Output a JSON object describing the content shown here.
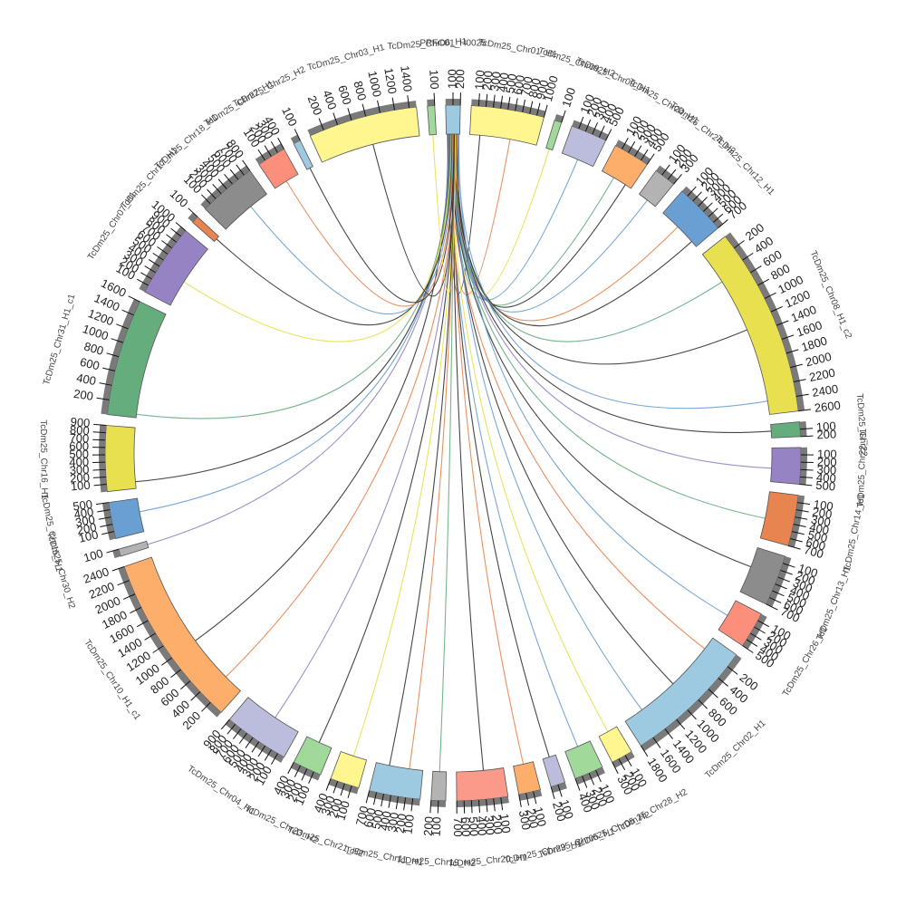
{
  "chart_data": {
    "type": "chord",
    "sectors": [
      {
        "name": "PRFC01_H0025",
        "length": 200,
        "color": "#9ecae1",
        "ticks": [
          100,
          200
        ]
      },
      {
        "name": "TcDm25_Chr01_H1",
        "length": 1000,
        "color": "#fff68f",
        "ticks": [
          100,
          200,
          300,
          400,
          500,
          600,
          700,
          800,
          900,
          1000
        ]
      },
      {
        "name": "TcDm25_Chr09_H2",
        "length": 100,
        "color": "#a1d99b",
        "ticks": [
          100
        ]
      },
      {
        "name": "TcDm25_Chr09_H1",
        "length": 500,
        "color": "#bcbddc",
        "ticks": [
          100,
          200,
          300,
          400,
          500
        ]
      },
      {
        "name": "TcDm25_Chr24_H1",
        "length": 500,
        "color": "#fdae6b",
        "ticks": [
          100,
          200,
          300,
          400,
          500
        ]
      },
      {
        "name": "TcDm25_Chr24_H2",
        "length": 300,
        "color": "#b3b3b3",
        "ticks": [
          100,
          200,
          300
        ]
      },
      {
        "name": "TcDm25_Chr12_H1",
        "length": 700,
        "color": "#6a9fd4",
        "ticks": [
          100,
          200,
          300,
          400,
          500,
          600,
          700
        ]
      },
      {
        "name": "TcDm25_Chr08_H1_c2",
        "length": 2600,
        "color": "#e8e04f",
        "ticks": [
          200,
          400,
          600,
          800,
          1000,
          1200,
          1400,
          1600,
          1800,
          2000,
          2200,
          2400,
          2600
        ]
      },
      {
        "name": "TcDm25_Chr22",
        "length": 200,
        "color": "#66ad7e",
        "ticks": [
          100,
          200
        ]
      },
      {
        "name": "TcDm25_Chr22_H1",
        "length": 500,
        "color": "#9683c4",
        "ticks": [
          100,
          200,
          300,
          400,
          500
        ]
      },
      {
        "name": "TcDm25_Chr14_H1",
        "length": 700,
        "color": "#e8844f",
        "ticks": [
          100,
          200,
          300,
          400,
          500,
          600,
          700
        ]
      },
      {
        "name": "TcDm25_Chr13_H1",
        "length": 700,
        "color": "#8c8c8c",
        "ticks": [
          100,
          200,
          300,
          400,
          500,
          600,
          700
        ]
      },
      {
        "name": "TcDm25_Chr26_H1",
        "length": 500,
        "color": "#fb8f7c",
        "ticks": [
          100,
          200,
          300,
          400,
          500
        ]
      },
      {
        "name": "TcDm25_Chr02_H1",
        "length": 1800,
        "color": "#9ecae1",
        "ticks": [
          200,
          400,
          600,
          800,
          1000,
          1200,
          1400,
          1600,
          1800
        ]
      },
      {
        "name": "TcDm25_Chr28_H2",
        "length": 300,
        "color": "#fff68f",
        "ticks": [
          100,
          200,
          300
        ]
      },
      {
        "name": "TcDm25_Chr05_H2",
        "length": 400,
        "color": "#a1d99b",
        "ticks": [
          100,
          200,
          300,
          400
        ]
      },
      {
        "name": "TcDm25_Chr05_H1",
        "length": 200,
        "color": "#bcbddc",
        "ticks": [
          100,
          200
        ]
      },
      {
        "name": "TcDm25_Chr29_H1",
        "length": 300,
        "color": "#fdae6b",
        "ticks": [
          100,
          200,
          300
        ]
      },
      {
        "name": "TcDm25_Chr20_H1",
        "length": 700,
        "color": "#fb9a8a",
        "ticks": [
          100,
          200,
          300,
          400,
          500,
          600,
          700
        ]
      },
      {
        "name": "TcDm25_Chr19_H2",
        "length": 200,
        "color": "#b3b3b3",
        "ticks": [
          100,
          200
        ]
      },
      {
        "name": "TcDm25_Chr11_H1",
        "length": 700,
        "color": "#9ecae1",
        "ticks": [
          100,
          200,
          300,
          400,
          500,
          600,
          700
        ]
      },
      {
        "name": "TcDm25_Chr21_H2",
        "length": 400,
        "color": "#fff68f",
        "ticks": [
          100,
          200,
          300,
          400
        ]
      },
      {
        "name": "TcDm25_Chr23_H2",
        "length": 400,
        "color": "#a1d99b",
        "ticks": [
          100,
          200,
          300,
          400
        ]
      },
      {
        "name": "TcDm25_Chr04_H1",
        "length": 900,
        "color": "#bcbddc",
        "ticks": [
          100,
          200,
          300,
          400,
          500,
          600,
          700,
          800,
          900
        ]
      },
      {
        "name": "TcDm25_Chr10_H1_c1",
        "length": 2400,
        "color": "#fdae6b",
        "ticks": [
          200,
          400,
          600,
          800,
          1000,
          1200,
          1400,
          1600,
          1800,
          2000,
          2200,
          2400
        ]
      },
      {
        "name": "TcDm25_Chr30_H2",
        "length": 100,
        "color": "#b3b3b3",
        "ticks": [
          100
        ]
      },
      {
        "name": "TcDm25_Chr15_H1",
        "length": 500,
        "color": "#6a9fd4",
        "ticks": [
          100,
          200,
          300,
          400,
          500
        ]
      },
      {
        "name": "TcDm25_Chr16_H1",
        "length": 900,
        "color": "#e8e04f",
        "ticks": [
          100,
          200,
          300,
          400,
          500,
          600,
          700,
          800,
          900
        ]
      },
      {
        "name": "TcDm25_Chr31_H1_c1",
        "length": 1600,
        "color": "#66ad7e",
        "ticks": [
          200,
          400,
          600,
          800,
          1000,
          1200,
          1400,
          1600
        ]
      },
      {
        "name": "TcDm25_Chr07_H1",
        "length": 1000,
        "color": "#9683c4",
        "ticks": [
          100,
          200,
          300,
          400,
          500,
          600,
          700,
          800,
          900,
          1000
        ]
      },
      {
        "name": "TcDm25_Chr17_H1",
        "length": 100,
        "color": "#e8844f",
        "ticks": [
          100
        ]
      },
      {
        "name": "TcDm25_Chr18_H1",
        "length": 800,
        "color": "#8c8c8c",
        "ticks": [
          100,
          200,
          300,
          400,
          500,
          600,
          700,
          800
        ]
      },
      {
        "name": "TcDm25_Chr27_H1",
        "length": 400,
        "color": "#fb8f7c",
        "ticks": [
          100,
          200,
          300,
          400
        ]
      },
      {
        "name": "TcDm25_Chr25_H2",
        "length": 100,
        "color": "#9ecae1",
        "ticks": [
          100
        ]
      },
      {
        "name": "TcDm25_Chr03_H1",
        "length": 1500,
        "color": "#fff68f",
        "ticks": [
          200,
          400,
          600,
          800,
          1000,
          1200,
          1400
        ]
      },
      {
        "name": "TcDm25_Chr06_H1",
        "length": 100,
        "color": "#a1d99b",
        "ticks": [
          100
        ]
      }
    ],
    "links": [
      {
        "source": 20,
        "target": 1,
        "position": 150,
        "color": "#333333"
      },
      {
        "source": 60,
        "target": 1,
        "position": 600,
        "color": "#e8844f"
      },
      {
        "source": 150,
        "target": 2,
        "position": 50,
        "color": "#e8e04f"
      },
      {
        "source": 110,
        "target": 3,
        "position": 250,
        "color": "#6a9fd4"
      },
      {
        "source": 130,
        "target": 4,
        "position": 200,
        "color": "#66ad7e"
      },
      {
        "source": 170,
        "target": 4,
        "position": 400,
        "color": "#333333"
      },
      {
        "source": 90,
        "target": 5,
        "position": 150,
        "color": "#6a9fd4"
      },
      {
        "source": 140,
        "target": 6,
        "position": 300,
        "color": "#e8844f"
      },
      {
        "source": 160,
        "target": 6,
        "position": 600,
        "color": "#333333"
      },
      {
        "source": 100,
        "target": 7,
        "position": 500,
        "color": "#66ad7e"
      },
      {
        "source": 120,
        "target": 7,
        "position": 1300,
        "color": "#333333"
      },
      {
        "source": 180,
        "target": 7,
        "position": 2400,
        "color": "#6a9fd4"
      },
      {
        "source": 80,
        "target": 8,
        "position": 100,
        "color": "#333333"
      },
      {
        "source": 70,
        "target": 9,
        "position": 300,
        "color": "#9683c4"
      },
      {
        "source": 60,
        "target": 10,
        "position": 400,
        "color": "#66ad7e"
      },
      {
        "source": 50,
        "target": 11,
        "position": 300,
        "color": "#333333"
      },
      {
        "source": 190,
        "target": 12,
        "position": 250,
        "color": "#6a9fd4"
      },
      {
        "source": 30,
        "target": 13,
        "position": 200,
        "color": "#e8844f"
      },
      {
        "source": 75,
        "target": 13,
        "position": 900,
        "color": "#333333"
      },
      {
        "source": 110,
        "target": 13,
        "position": 1500,
        "color": "#6a9fd4"
      },
      {
        "source": 55,
        "target": 14,
        "position": 150,
        "color": "#e8e04f"
      },
      {
        "source": 45,
        "target": 15,
        "position": 200,
        "color": "#6a9fd4"
      },
      {
        "source": 65,
        "target": 16,
        "position": 100,
        "color": "#333333"
      },
      {
        "source": 85,
        "target": 17,
        "position": 150,
        "color": "#e8844f"
      },
      {
        "source": 95,
        "target": 18,
        "position": 300,
        "color": "#333333"
      },
      {
        "source": 105,
        "target": 19,
        "position": 100,
        "color": "#66ad7e"
      },
      {
        "source": 115,
        "target": 20,
        "position": 200,
        "color": "#e8844f"
      },
      {
        "source": 125,
        "target": 20,
        "position": 500,
        "color": "#333333"
      },
      {
        "source": 135,
        "target": 21,
        "position": 200,
        "color": "#e8e04f"
      },
      {
        "source": 145,
        "target": 22,
        "position": 200,
        "color": "#333333"
      },
      {
        "source": 155,
        "target": 23,
        "position": 400,
        "color": "#9683c4"
      },
      {
        "source": 165,
        "target": 24,
        "position": 300,
        "color": "#e8844f"
      },
      {
        "source": 25,
        "target": 24,
        "position": 1000,
        "color": "#333333"
      },
      {
        "source": 35,
        "target": 25,
        "position": 50,
        "color": "#9683c4"
      },
      {
        "source": 45,
        "target": 26,
        "position": 300,
        "color": "#6a9fd4"
      },
      {
        "source": 55,
        "target": 27,
        "position": 100,
        "color": "#333333"
      },
      {
        "source": 65,
        "target": 28,
        "position": 50,
        "color": "#66ad7e"
      },
      {
        "source": 75,
        "target": 29,
        "position": 400,
        "color": "#e8e04f"
      },
      {
        "source": 85,
        "target": 30,
        "position": 50,
        "color": "#333333"
      },
      {
        "source": 95,
        "target": 31,
        "position": 500,
        "color": "#6a9fd4"
      },
      {
        "source": 105,
        "target": 32,
        "position": 200,
        "color": "#e8844f"
      },
      {
        "source": 115,
        "target": 33,
        "position": 50,
        "color": "#333333"
      },
      {
        "source": 125,
        "target": 34,
        "position": 800,
        "color": "#333333"
      },
      {
        "source": 135,
        "target": 35,
        "position": 50,
        "color": "#e8e04f"
      }
    ]
  }
}
